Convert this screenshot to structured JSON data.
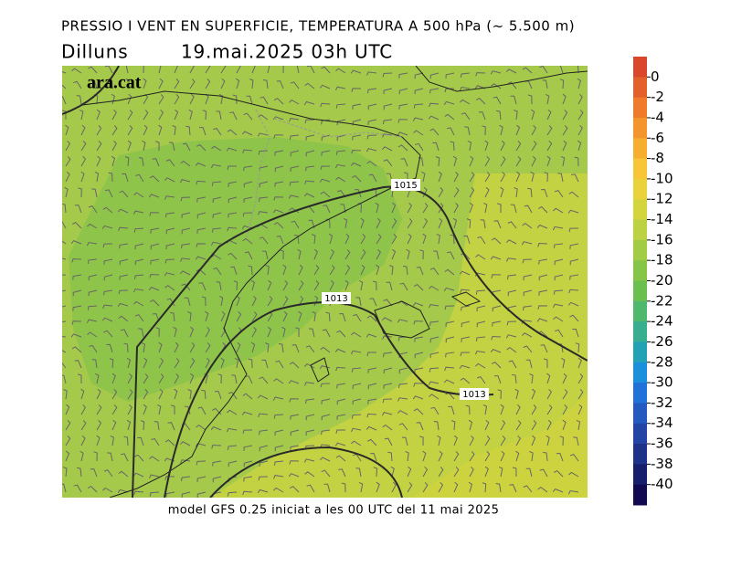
{
  "header": {
    "title": "PRESSIO I VENT EN SUPERFICIE, TEMPERATURA A 500 hPa (~ 5.500 m)",
    "day": "Dilluns",
    "datetime": "19.mai.2025 03h UTC"
  },
  "logo": "ara.cat",
  "isobar_labels": [
    "1015",
    "1013",
    "1013"
  ],
  "footer": "model GFS 0.25 iniciat a les 00 UTC del 11 mai 2025",
  "colorbar": {
    "labels": [
      "0",
      "-2",
      "-4",
      "-6",
      "-8",
      "-10",
      "-12",
      "-14",
      "-16",
      "-18",
      "-20",
      "-22",
      "-24",
      "-26",
      "-28",
      "-30",
      "-32",
      "-34",
      "-36",
      "-38",
      "-40"
    ],
    "colors": [
      "#d9482b",
      "#e4602a",
      "#ee7a2a",
      "#f4942c",
      "#f7ae2e",
      "#f7c535",
      "#e9d23a",
      "#d4d43e",
      "#bcd242",
      "#a3cc45",
      "#86c548",
      "#6abf4f",
      "#4fb86d",
      "#36ae8f",
      "#22a2b4",
      "#1a8fdc",
      "#2071d8",
      "#2459c0",
      "#2245a5",
      "#1d3288",
      "#171f6b",
      "#120a50"
    ]
  }
}
